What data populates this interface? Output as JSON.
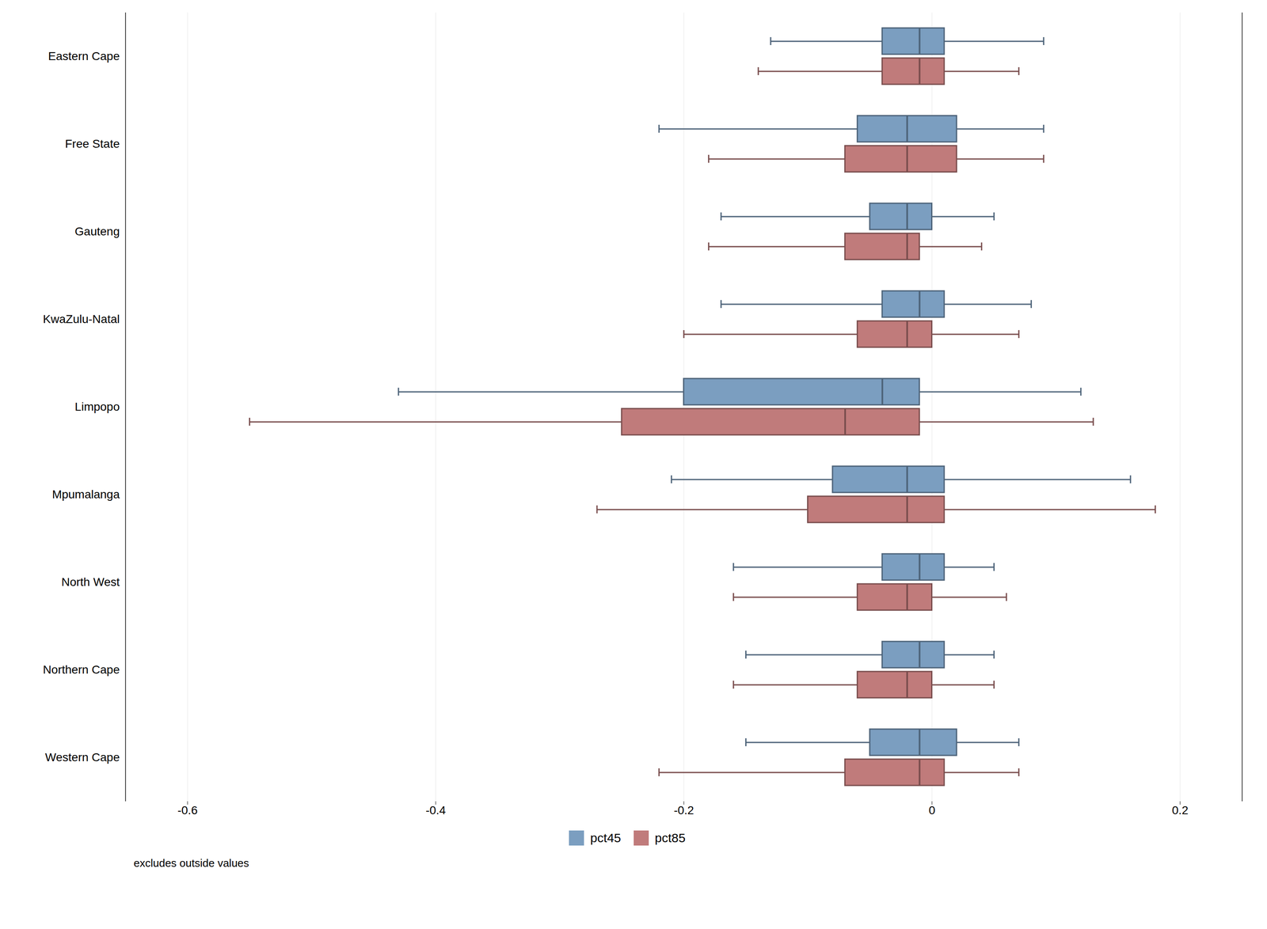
{
  "chart_data": {
    "type": "box",
    "orientation": "horizontal",
    "categories": [
      "Eastern Cape",
      "Free State",
      "Gauteng",
      "KwaZulu-Natal",
      "Limpopo",
      "Mpumalanga",
      "North West",
      "Northern Cape",
      "Western Cape"
    ],
    "series": [
      {
        "name": "pct45",
        "color": "#7B9EC0",
        "values": [
          {
            "whislo": -0.13,
            "q1": -0.04,
            "med": -0.01,
            "q3": 0.01,
            "whishi": 0.09
          },
          {
            "whislo": -0.22,
            "q1": -0.06,
            "med": -0.02,
            "q3": 0.02,
            "whishi": 0.09
          },
          {
            "whislo": -0.17,
            "q1": -0.05,
            "med": -0.02,
            "q3": 0.0,
            "whishi": 0.05
          },
          {
            "whislo": -0.17,
            "q1": -0.04,
            "med": -0.01,
            "q3": 0.01,
            "whishi": 0.08
          },
          {
            "whislo": -0.43,
            "q1": -0.2,
            "med": -0.04,
            "q3": -0.01,
            "whishi": 0.12
          },
          {
            "whislo": -0.21,
            "q1": -0.08,
            "med": -0.02,
            "q3": 0.01,
            "whishi": 0.16
          },
          {
            "whislo": -0.16,
            "q1": -0.04,
            "med": -0.01,
            "q3": 0.01,
            "whishi": 0.05
          },
          {
            "whislo": -0.15,
            "q1": -0.04,
            "med": -0.01,
            "q3": 0.01,
            "whishi": 0.05
          },
          {
            "whislo": -0.15,
            "q1": -0.05,
            "med": -0.01,
            "q3": 0.02,
            "whishi": 0.07
          }
        ]
      },
      {
        "name": "pct85",
        "color": "#C07B7B",
        "values": [
          {
            "whislo": -0.14,
            "q1": -0.04,
            "med": -0.01,
            "q3": 0.01,
            "whishi": 0.07
          },
          {
            "whislo": -0.18,
            "q1": -0.07,
            "med": -0.02,
            "q3": 0.02,
            "whishi": 0.09
          },
          {
            "whislo": -0.18,
            "q1": -0.07,
            "med": -0.02,
            "q3": -0.01,
            "whishi": 0.04
          },
          {
            "whislo": -0.2,
            "q1": -0.06,
            "med": -0.02,
            "q3": 0.0,
            "whishi": 0.07
          },
          {
            "whislo": -0.55,
            "q1": -0.25,
            "med": -0.07,
            "q3": -0.01,
            "whishi": 0.13
          },
          {
            "whislo": -0.27,
            "q1": -0.1,
            "med": -0.02,
            "q3": 0.01,
            "whishi": 0.18
          },
          {
            "whislo": -0.16,
            "q1": -0.06,
            "med": -0.02,
            "q3": 0.0,
            "whishi": 0.06
          },
          {
            "whislo": -0.16,
            "q1": -0.06,
            "med": -0.02,
            "q3": 0.0,
            "whishi": 0.05
          },
          {
            "whislo": -0.22,
            "q1": -0.07,
            "med": -0.01,
            "q3": 0.01,
            "whishi": 0.07
          }
        ]
      }
    ],
    "xlim": [
      -0.65,
      0.25
    ],
    "xticks": [
      -0.6,
      -0.4,
      -0.2,
      0,
      0.2
    ],
    "grid": true,
    "legend": "bottom",
    "annotations": [
      "excludes outside values"
    ]
  }
}
